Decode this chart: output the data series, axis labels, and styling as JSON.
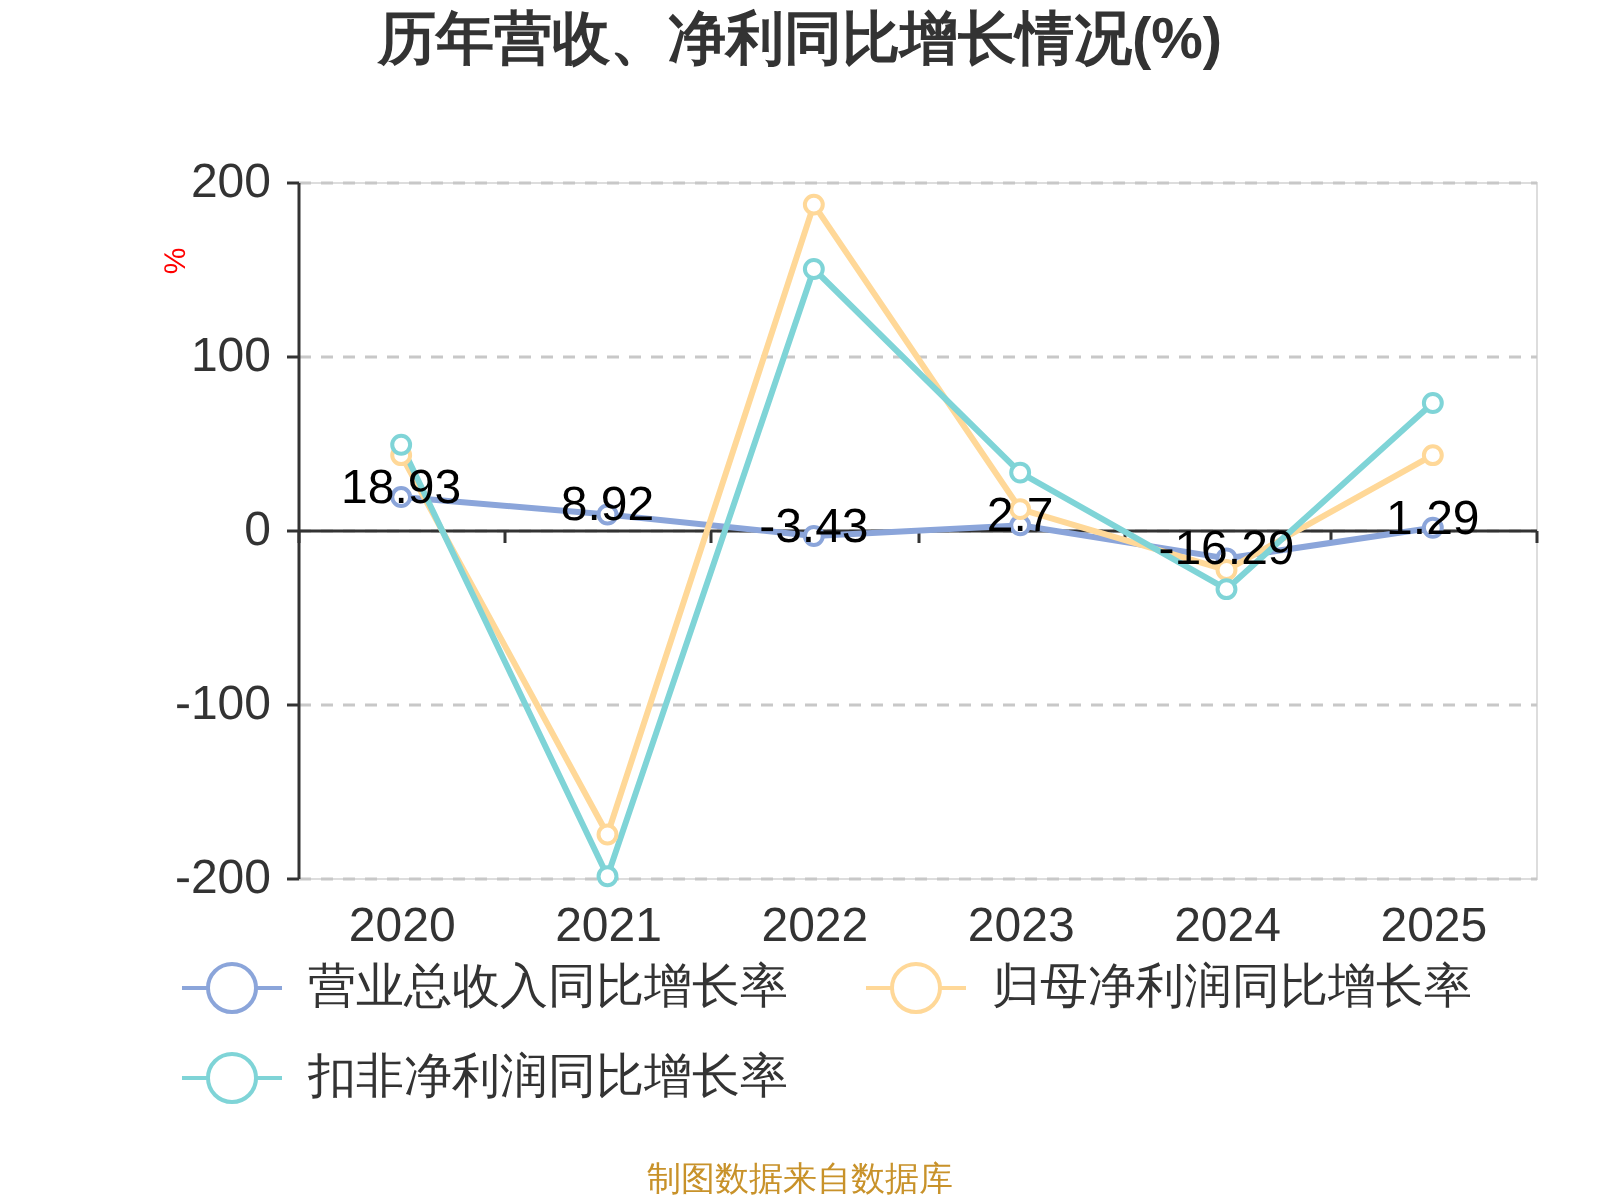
{
  "chart_data": {
    "type": "line",
    "title": "历年营收、净利同比增长情况(%)",
    "ylabel": "%",
    "categories": [
      "2020",
      "2021",
      "2022",
      "2023",
      "2024",
      "2025"
    ],
    "series": [
      {
        "name": "营业总收入同比增长率",
        "color": "#8ba5da",
        "values": [
          18.93,
          8.92,
          -3.43,
          2.7,
          -16.29,
          1.29
        ],
        "value_labels": [
          "18.93",
          "8.92",
          "-3.43",
          "2.7",
          "-16.29",
          "1.29"
        ]
      },
      {
        "name": "归母净利润同比增长率",
        "color": "#ffd898",
        "values": [
          43,
          -175,
          187,
          12,
          -23,
          43
        ]
      },
      {
        "name": "扣非净利润同比增长率",
        "color": "#7fd4d7",
        "values": [
          49,
          -199,
          150,
          33,
          -34,
          73
        ]
      }
    ],
    "ylim": [
      -200,
      200
    ],
    "yticks": [
      -200,
      -100,
      0,
      100,
      200
    ],
    "grid": "y",
    "legend": "bottom",
    "marker": "circle",
    "line_style": "solid",
    "annotations": [
      "制图数据来自数据库"
    ]
  }
}
